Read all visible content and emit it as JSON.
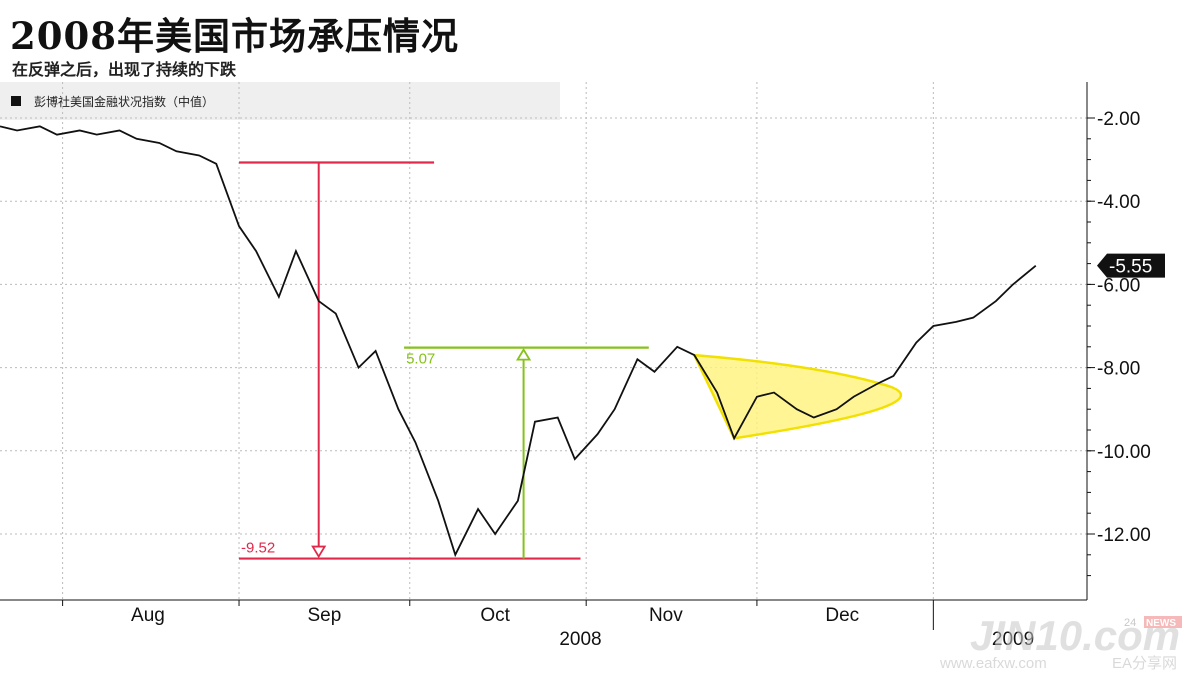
{
  "title": "2008年美国市场承压情况",
  "subtitle": "在反弹之后，出现了持续的下跌",
  "colors": {
    "line": "#111111",
    "red": "#e0294a",
    "green": "#86c21a",
    "yellow": "#f2e000",
    "yellow_fill": "#fff27a"
  },
  "chart_data": {
    "type": "line",
    "legend": "彭博社美国金融状况指数（中值）",
    "series": [
      {
        "name": "彭博社美国金融状况指数（中值）",
        "x": [
          "2008-07-21",
          "2008-07-24",
          "2008-07-28",
          "2008-07-31",
          "2008-08-04",
          "2008-08-07",
          "2008-08-11",
          "2008-08-14",
          "2008-08-18",
          "2008-08-21",
          "2008-08-25",
          "2008-08-28",
          "2008-09-01",
          "2008-09-04",
          "2008-09-08",
          "2008-09-11",
          "2008-09-15",
          "2008-09-18",
          "2008-09-22",
          "2008-09-25",
          "2008-09-29",
          "2008-10-02",
          "2008-10-06",
          "2008-10-09",
          "2008-10-13",
          "2008-10-16",
          "2008-10-20",
          "2008-10-23",
          "2008-10-27",
          "2008-10-30",
          "2008-11-03",
          "2008-11-06",
          "2008-11-10",
          "2008-11-13",
          "2008-11-17",
          "2008-11-20",
          "2008-11-24",
          "2008-11-27",
          "2008-12-01",
          "2008-12-04",
          "2008-12-08",
          "2008-12-11",
          "2008-12-15",
          "2008-12-18",
          "2008-12-22",
          "2008-12-25",
          "2008-12-29",
          "2009-01-01",
          "2009-01-05",
          "2009-01-08",
          "2009-01-12",
          "2009-01-15",
          "2009-01-19"
        ],
        "values": [
          -2.2,
          -2.3,
          -2.2,
          -2.4,
          -2.3,
          -2.4,
          -2.3,
          -2.5,
          -2.6,
          -2.8,
          -2.9,
          -3.1,
          -4.6,
          -5.2,
          -6.3,
          -5.2,
          -6.4,
          -6.7,
          -8.0,
          -7.6,
          -9.0,
          -9.8,
          -11.2,
          -12.5,
          -11.4,
          -12.0,
          -11.2,
          -9.3,
          -9.2,
          -10.2,
          -9.6,
          -9.0,
          -7.8,
          -8.1,
          -7.5,
          -7.7,
          -8.6,
          -9.7,
          -8.7,
          -8.6,
          -9.0,
          -9.2,
          -9.0,
          -8.7,
          -8.4,
          -8.2,
          -7.4,
          -7.0,
          -6.9,
          -6.8,
          -6.4,
          -6.0,
          -5.55
        ]
      }
    ],
    "x_tick_labels": [
      "Aug",
      "Sep",
      "Oct",
      "Nov",
      "Dec",
      "2009"
    ],
    "x_year_label": "2008",
    "y_tick_labels": [
      "-2.00",
      "-4.00",
      "-6.00",
      "-8.00",
      "-10.00",
      "-12.00"
    ],
    "ylim": [
      -13.5,
      -1.3
    ],
    "last_value_label": "-5.55",
    "annotations": [
      {
        "label": "-9.52",
        "color": "red",
        "arrow": "down",
        "from": -3.07,
        "to": -12.59
      },
      {
        "label": "5.07",
        "color": "green",
        "arrow": "up",
        "from": -12.59,
        "to": -7.52
      }
    ],
    "grid": true,
    "legend_position": "top-left"
  },
  "watermark": {
    "brand": "JIN10.com",
    "badge_num": "24",
    "badge_text": "NEWS",
    "site": "www.eafxw.com",
    "site2": "EA分享网"
  }
}
